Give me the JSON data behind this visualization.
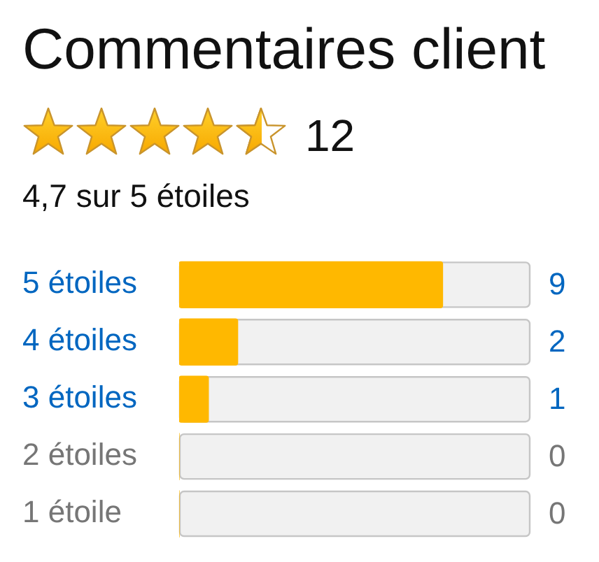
{
  "chart_data": {
    "type": "bar",
    "title": "Commentaires client",
    "subtitle": "4,7 sur 5 étoiles",
    "annotations": [
      "12"
    ],
    "orientation": "horizontal",
    "categories": [
      "5 étoiles",
      "4 étoiles",
      "3 étoiles",
      "2 étoiles",
      "1 étoile"
    ],
    "values": [
      9,
      2,
      1,
      0,
      0
    ],
    "color": "#ffb800",
    "xlim": [
      0,
      12
    ],
    "tick_labels": "y",
    "data_labels": true
  }
}
